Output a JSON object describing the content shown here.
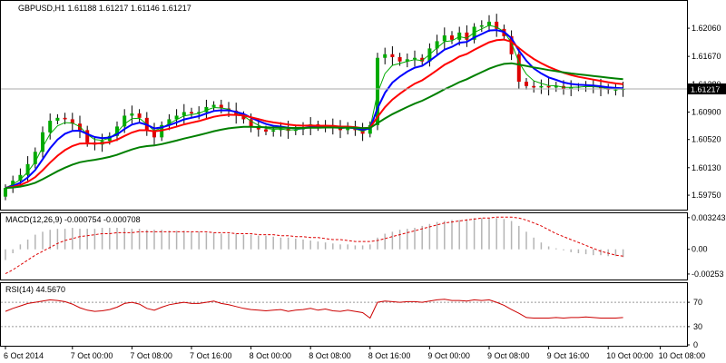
{
  "chart_data": {
    "type": "candlestick",
    "header": {
      "symbol": "GBPUSD,H1",
      "ohlc": "1.61188 1.61217 1.61146 1.61217",
      "text": "GBPUSD,H1  1.61188 1.61217 1.61146 1.61217"
    },
    "current_price_label": "1.61217",
    "ylim": [
      1.5955,
      1.624
    ],
    "y_ticks": [
      "1.62060",
      "1.61670",
      "1.61280",
      "1.60900",
      "1.60520",
      "1.60130",
      "1.59750"
    ],
    "y_tick_values": [
      1.6206,
      1.6167,
      1.6128,
      1.609,
      1.6052,
      1.6013,
      1.5975
    ],
    "x_ticks": [
      "6 Oct 2014",
      "7 Oct 00:00",
      "7 Oct 08:00",
      "7 Oct 16:00",
      "8 Oct 00:00",
      "8 Oct 08:00",
      "8 Oct 16:00",
      "9 Oct 00:00",
      "9 Oct 08:00",
      "9 Oct 16:00",
      "10 Oct 00:00",
      "10 Oct 08:00"
    ],
    "x_tick_bar_index": [
      0,
      9,
      17,
      25,
      33,
      41,
      49,
      57,
      65,
      73,
      81,
      88
    ],
    "bull_color": "#00aa00",
    "bear_color": "#dd0000",
    "ma_colors": [
      "#00aa00",
      "#0000ff",
      "#ff0000",
      "#008000"
    ],
    "close": [
      1.5985,
      1.5995,
      1.6003,
      1.6018,
      1.6035,
      1.6062,
      1.6078,
      1.6082,
      1.608,
      1.6074,
      1.6065,
      1.6048,
      1.6045,
      1.605,
      1.6057,
      1.607,
      1.6085,
      1.6088,
      1.6082,
      1.6065,
      1.6055,
      1.6072,
      1.608,
      1.6085,
      1.609,
      1.6088,
      1.609,
      1.6097,
      1.61,
      1.6095,
      1.6092,
      1.6085,
      1.608,
      1.607,
      1.6066,
      1.6063,
      1.6065,
      1.6067,
      1.6064,
      1.6066,
      1.6068,
      1.6073,
      1.6069,
      1.6072,
      1.6068,
      1.6065,
      1.607,
      1.6065,
      1.606,
      1.6072,
      1.6165,
      1.617,
      1.6166,
      1.616,
      1.6163,
      1.6165,
      1.616,
      1.6178,
      1.6188,
      1.6196,
      1.619,
      1.62,
      1.619,
      1.6208,
      1.621,
      1.6215,
      1.6205,
      1.6195,
      1.617,
      1.6132,
      1.6126,
      1.6124,
      1.6126,
      1.6124,
      1.6126,
      1.6122,
      1.6124,
      1.6125,
      1.6126,
      1.6125,
      1.6123,
      1.6121,
      1.6121,
      1.6122
    ]
  },
  "macd": {
    "label": "MACD(12,26,9) -0.000754 -0.000708",
    "y_ticks": [
      "0.003243",
      "0.00",
      "-0.00253"
    ],
    "ylim": [
      -0.003,
      0.0036
    ],
    "signal_color": "#dd0000",
    "hist_color": "#b4b4b4",
    "values": [
      -0.0011,
      -0.0004,
      0.0005,
      0.001,
      0.0015,
      0.0018,
      0.002,
      0.0021,
      0.0021,
      0.0022,
      0.0021,
      0.0021,
      0.0021,
      0.0022,
      0.0022,
      0.0022,
      0.0022,
      0.0021,
      0.0021,
      0.002,
      0.002,
      0.002,
      0.0019,
      0.0019,
      0.0019,
      0.0018,
      0.0018,
      0.0017,
      0.0017,
      0.0016,
      0.0016,
      0.0016,
      0.0015,
      0.0015,
      0.0014,
      0.0014,
      0.0013,
      0.0012,
      0.0012,
      0.0011,
      0.001,
      0.0009,
      0.0008,
      0.0007,
      0.0006,
      0.0005,
      0.0005,
      0.0004,
      0.0004,
      0.0005,
      0.0012,
      0.0016,
      0.0018,
      0.002,
      0.0021,
      0.0022,
      0.0024,
      0.0026,
      0.0028,
      0.0029,
      0.003,
      0.003,
      0.0031,
      0.0032,
      0.0032,
      0.0032,
      0.0032,
      0.0031,
      0.0029,
      0.0024,
      0.0018,
      0.0012,
      0.0007,
      0.0003,
      0.0001,
      -0.0001,
      -0.0003,
      -0.0004,
      -0.0005,
      -0.0006,
      -0.0006,
      -0.0007,
      -0.0007,
      -0.0008
    ],
    "signal": [
      -0.0025,
      -0.0021,
      -0.0016,
      -0.0011,
      -0.0006,
      -0.0002,
      0.0002,
      0.0006,
      0.0009,
      0.0011,
      0.0013,
      0.0014,
      0.0015,
      0.0016,
      0.0016,
      0.0017,
      0.0017,
      0.0017,
      0.0018,
      0.0018,
      0.0018,
      0.0018,
      0.0018,
      0.0018,
      0.0018,
      0.0018,
      0.0018,
      0.0018,
      0.0017,
      0.0017,
      0.0017,
      0.0016,
      0.0016,
      0.0016,
      0.0015,
      0.0015,
      0.0015,
      0.0014,
      0.0014,
      0.0013,
      0.0013,
      0.0012,
      0.0012,
      0.0011,
      0.001,
      0.001,
      0.0009,
      0.0008,
      0.0008,
      0.0008,
      0.0009,
      0.0011,
      0.0013,
      0.0015,
      0.0017,
      0.0019,
      0.0021,
      0.0023,
      0.0025,
      0.0027,
      0.0028,
      0.0029,
      0.003,
      0.0031,
      0.0032,
      0.0032,
      0.0033,
      0.0033,
      0.0033,
      0.0032,
      0.003,
      0.0027,
      0.0024,
      0.002,
      0.0016,
      0.0013,
      0.001,
      0.0007,
      0.0004,
      0.0001,
      -0.0002,
      -0.0004,
      -0.0006,
      -0.0007
    ]
  },
  "rsi": {
    "label": "RSI(14) 44.5670",
    "y_ticks": [
      "70",
      "30",
      "0"
    ],
    "ylim": [
      0,
      100
    ],
    "levels": [
      70,
      30
    ],
    "line_color": "#cc0000",
    "values": [
      55,
      60,
      64,
      68,
      70,
      72,
      74,
      73,
      71,
      67,
      61,
      57,
      55,
      56,
      58,
      62,
      68,
      70,
      67,
      60,
      57,
      62,
      66,
      68,
      70,
      68,
      68,
      70,
      72,
      68,
      66,
      63,
      60,
      58,
      57,
      56,
      57,
      58,
      55,
      57,
      58,
      60,
      57,
      59,
      56,
      55,
      57,
      55,
      53,
      44,
      70,
      72,
      71,
      70,
      71,
      71,
      70,
      72,
      74,
      75,
      73,
      73,
      72,
      74,
      73,
      74,
      70,
      65,
      58,
      52,
      45,
      44,
      44,
      44,
      45,
      44,
      45,
      45,
      46,
      45,
      44,
      44,
      44,
      45
    ]
  }
}
